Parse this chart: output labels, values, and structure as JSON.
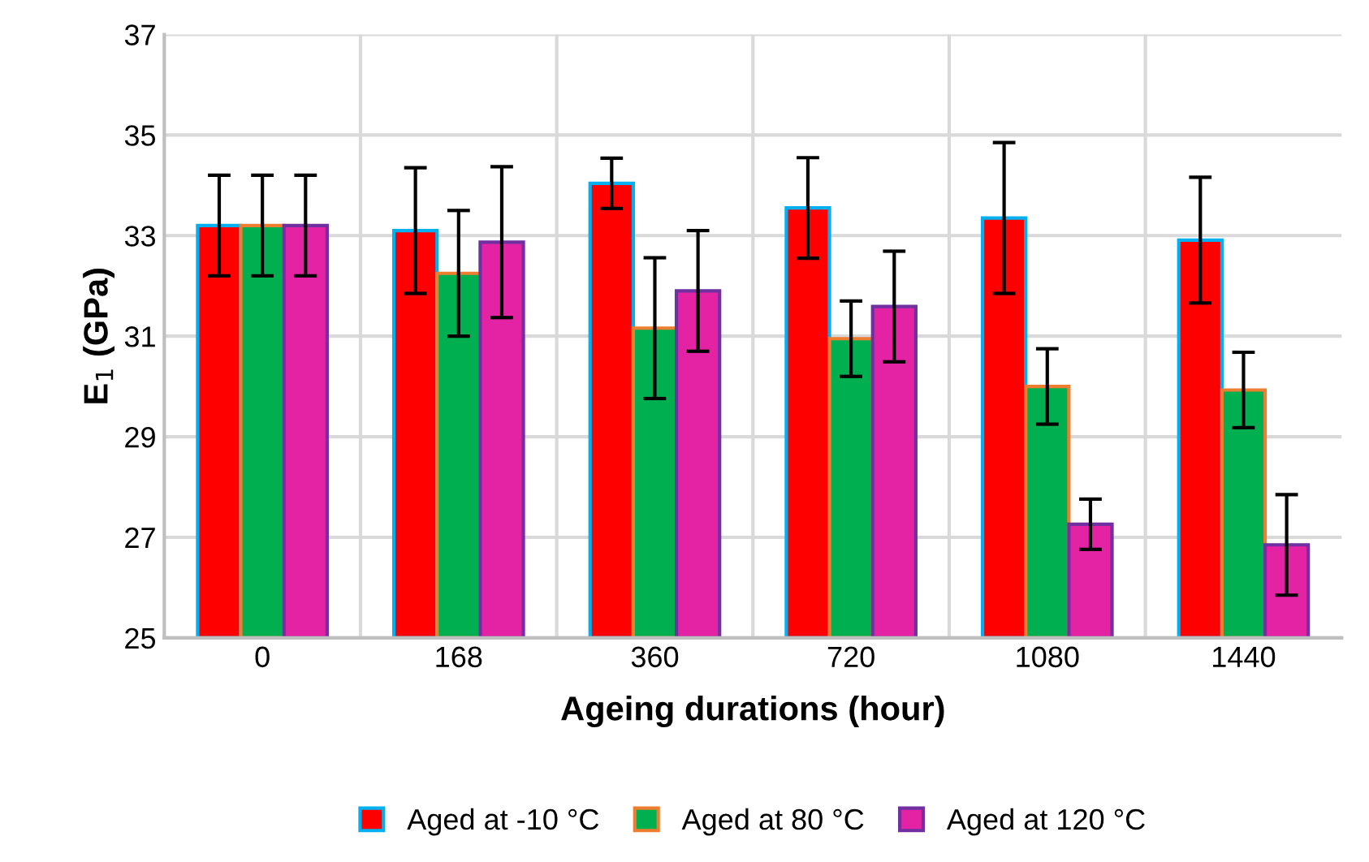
{
  "chart_data": {
    "type": "bar",
    "xlabel": "Ageing durations (hour)",
    "ylabel": "E$_{1}$ (GPa)",
    "categories": [
      "0",
      "168",
      "360",
      "720",
      "1080",
      "1440"
    ],
    "series": [
      {
        "name": "Aged at -10 °C",
        "color": "#ff0000",
        "values": [
          33.2,
          33.1,
          34.04,
          33.55,
          33.35,
          32.91
        ],
        "errors": [
          1.0,
          1.25,
          0.5,
          1.0,
          1.5,
          1.25
        ]
      },
      {
        "name": "Aged at 80 °C",
        "color": "#00b050",
        "values": [
          33.2,
          32.25,
          31.16,
          30.95,
          30.0,
          29.93
        ],
        "errors": [
          1.0,
          1.25,
          1.4,
          0.75,
          0.75,
          0.75
        ]
      },
      {
        "name": "Aged at 120 °C",
        "color": "#e323a4",
        "values": [
          33.2,
          32.87,
          31.9,
          31.59,
          27.26,
          26.85
        ],
        "errors": [
          1.0,
          1.5,
          1.2,
          1.1,
          0.5,
          1.0
        ]
      }
    ],
    "ylim": [
      25,
      37
    ],
    "yticks": [
      25,
      27,
      29,
      31,
      33,
      35,
      37
    ],
    "grid": true,
    "legend": "bottom"
  }
}
